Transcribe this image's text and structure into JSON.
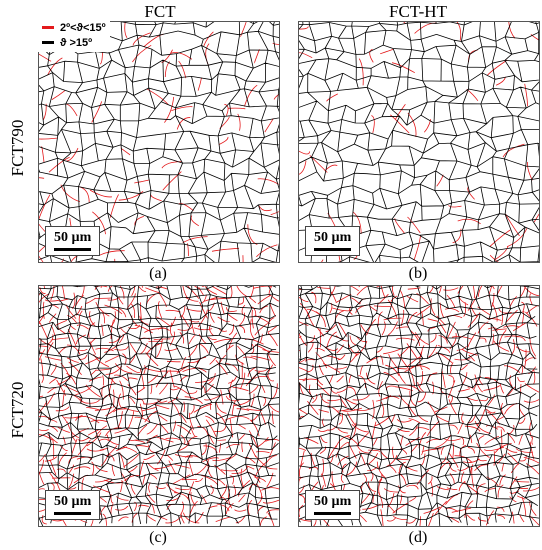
{
  "columns": [
    "FCT",
    "FCT-HT"
  ],
  "rows": [
    "FCT790",
    "FCT720"
  ],
  "legend": [
    {
      "label": "2º<ϑ<15º",
      "color": "#e31a1c"
    },
    {
      "label": "ϑ >15º",
      "color": "#000000"
    }
  ],
  "scale_bar_label": "50 µm",
  "panels": [
    {
      "caption": "(a)",
      "low_angle_density": 0.25
    },
    {
      "caption": "(b)",
      "low_angle_density": 0.18
    },
    {
      "caption": "(c)",
      "low_angle_density": 0.85
    },
    {
      "caption": "(d)",
      "low_angle_density": 0.75
    }
  ]
}
